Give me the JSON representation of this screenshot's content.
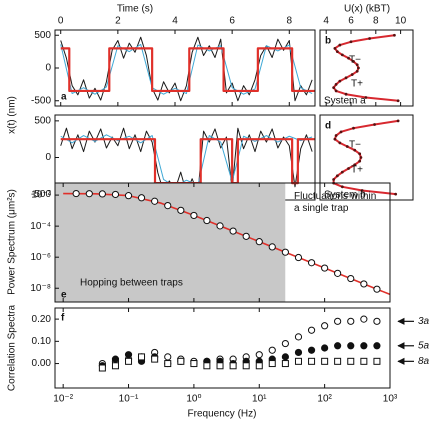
{
  "chart_data": [
    {
      "type": "line",
      "panel_label": "a",
      "x_label": "Time (s)",
      "y_label": "x(t) (nm)",
      "xlim": [
        -0.2,
        8.9
      ],
      "xticks": [
        0,
        2,
        4,
        6,
        8
      ],
      "ylim": [
        -580,
        580
      ],
      "yticks": [
        -500,
        0,
        500
      ],
      "series": [
        {
          "color": "#1a1a1a",
          "x": [
            0,
            0.2,
            0.4,
            0.6,
            0.8,
            1,
            1.2,
            1.4,
            1.6,
            1.8,
            2,
            2.2,
            2.4,
            2.6,
            2.8,
            3,
            3.2,
            3.4,
            3.6,
            3.8,
            4,
            4.2,
            4.4,
            4.6,
            4.8,
            5,
            5.2,
            5.4,
            5.6,
            5.8,
            6,
            6.2,
            6.4,
            6.6,
            6.8,
            7,
            7.2,
            7.4,
            7.6,
            7.8,
            8,
            8.2,
            8.4,
            8.6,
            8.8
          ],
          "values": [
            420,
            150,
            -270,
            -410,
            -180,
            -460,
            -310,
            -490,
            -210,
            270,
            420,
            150,
            380,
            240,
            470,
            190,
            -310,
            -490,
            -210,
            -380,
            -230,
            -500,
            -270,
            240,
            470,
            190,
            340,
            160,
            440,
            -380,
            -230,
            -500,
            -270,
            -410,
            -180,
            190,
            340,
            160,
            440,
            270,
            420,
            -500,
            -270,
            -410,
            -180
          ]
        },
        {
          "color": "#3fa9d6",
          "x": [
            0,
            0.4,
            0.8,
            1.2,
            1.6,
            2,
            2.4,
            2.8,
            3.2,
            3.6,
            4,
            4.4,
            4.8,
            5.2,
            5.6,
            6,
            6.4,
            6.8,
            7.2,
            7.6,
            8,
            8.4,
            8.8
          ],
          "values": [
            360,
            -390,
            -300,
            -400,
            -290,
            340,
            250,
            360,
            -300,
            -400,
            -310,
            -390,
            350,
            260,
            340,
            -300,
            -400,
            -320,
            340,
            260,
            350,
            -300,
            -390
          ]
        },
        {
          "color": "#e0302a",
          "x": [
            0,
            0.3,
            0.3,
            1.7,
            1.7,
            3.2,
            3.2,
            4.5,
            4.5,
            5.7,
            5.7,
            6.9,
            6.9,
            8.1,
            8.1,
            8.9
          ],
          "values": [
            300,
            300,
            -350,
            -350,
            300,
            300,
            -350,
            -350,
            300,
            300,
            -350,
            -350,
            300,
            300,
            -350,
            -350
          ]
        }
      ]
    },
    {
      "type": "profile",
      "panel_label": "b",
      "x_label": "U(x) (kBT)",
      "xlim": [
        3.5,
        11
      ],
      "xticks": [
        4,
        6,
        8,
        10
      ],
      "ylim": [
        -580,
        580
      ],
      "annotations": [
        "T−",
        "T+",
        "System a"
      ],
      "series": [
        {
          "color": "#d7282f",
          "x": [
            500,
            450,
            400,
            350,
            300,
            250,
            200,
            150,
            100,
            50,
            0,
            -50,
            -100,
            -150,
            -200,
            -250,
            -300,
            -350,
            -400,
            -450,
            -500
          ],
          "values": [
            9.5,
            7.5,
            6.0,
            5.1,
            4.7,
            4.9,
            5.3,
            5.8,
            6.2,
            6.5,
            6.6,
            6.5,
            6.1,
            5.6,
            5.1,
            4.8,
            4.6,
            4.8,
            5.6,
            7.2,
            9.8
          ]
        }
      ]
    },
    {
      "type": "line",
      "panel_label": "c",
      "xlim": [
        -0.2,
        8.9
      ],
      "ylim": [
        -580,
        580
      ],
      "yticks": [
        -500,
        0,
        500
      ],
      "series": [
        {
          "color": "#1a1a1a",
          "x": [
            0,
            0.2,
            0.4,
            0.6,
            0.8,
            1,
            1.2,
            1.4,
            1.6,
            1.8,
            2,
            2.2,
            2.4,
            2.6,
            2.8,
            3,
            3.2,
            3.4,
            3.6,
            3.8,
            4,
            4.2,
            4.4,
            4.6,
            4.8,
            5,
            5.2,
            5.4,
            5.6,
            5.8,
            6,
            6.2,
            6.4,
            6.6,
            6.8,
            7,
            7.2,
            7.4,
            7.6,
            7.8,
            8,
            8.2,
            8.4,
            8.6,
            8.8
          ],
          "values": [
            160,
            400,
            120,
            310,
            80,
            360,
            210,
            390,
            130,
            280,
            160,
            400,
            120,
            310,
            80,
            360,
            210,
            -210,
            -470,
            -320,
            -440,
            -200,
            -480,
            -290,
            -490,
            360,
            210,
            390,
            130,
            280,
            -440,
            400,
            120,
            310,
            80,
            360,
            210,
            390,
            130,
            280,
            160,
            -400,
            120,
            310,
            80
          ]
        },
        {
          "color": "#3fa9d6",
          "x": [
            0,
            0.4,
            0.8,
            1.2,
            1.6,
            2,
            2.4,
            2.8,
            3.2,
            3.6,
            4,
            4.4,
            4.8,
            5.2,
            5.6,
            6,
            6.4,
            6.8,
            7.2,
            7.6,
            8,
            8.4,
            8.8
          ],
          "values": [
            290,
            200,
            300,
            220,
            310,
            230,
            290,
            200,
            300,
            -300,
            -400,
            -310,
            -380,
            300,
            210,
            -330,
            290,
            220,
            300,
            210,
            290,
            230,
            280
          ]
        },
        {
          "color": "#e0302a",
          "x": [
            0,
            3.3,
            3.3,
            4.9,
            4.9,
            6.0,
            6.0,
            6.2,
            6.2,
            8.1,
            8.1,
            8.3,
            8.3,
            8.9
          ],
          "values": [
            250,
            250,
            -350,
            -350,
            250,
            250,
            -350,
            -350,
            250,
            250,
            -350,
            -350,
            250,
            250
          ]
        }
      ]
    },
    {
      "type": "profile",
      "panel_label": "d",
      "xlim": [
        3.5,
        11
      ],
      "ylim": [
        -580,
        580
      ],
      "annotations": [
        "T−",
        "T+",
        "System b"
      ],
      "series": [
        {
          "color": "#d7282f",
          "x": [
            500,
            450,
            400,
            350,
            300,
            250,
            200,
            150,
            100,
            50,
            0,
            -50,
            -100,
            -150,
            -200,
            -250,
            -300,
            -350,
            -400,
            -450,
            -500
          ],
          "values": [
            9.8,
            7.9,
            6.2,
            5.2,
            4.8,
            4.7,
            5.1,
            5.7,
            6.3,
            6.7,
            6.8,
            6.7,
            6.3,
            5.8,
            5.3,
            4.9,
            4.6,
            4.6,
            5.3,
            6.9,
            9.6
          ]
        }
      ]
    },
    {
      "type": "spectrum",
      "panel_label": "e",
      "y_label": "Power Spectrum (μm²s)",
      "xscale": "log",
      "yscale": "log",
      "xlim": [
        0.0075,
        1000
      ],
      "ylim": [
        1.3e-09,
        0.06
      ],
      "yticks": [
        {
          "value": 0.01,
          "label": "10⁻²"
        },
        {
          "value": 0.0001,
          "label": "10⁻⁴"
        },
        {
          "value": 1e-06,
          "label": "10⁻⁶"
        },
        {
          "value": 1e-08,
          "label": "10⁻⁸"
        }
      ],
      "shaded_xlim": [
        0.0075,
        25
      ],
      "shade_color": "#c8c8c8",
      "annotations": [
        "Fluctuations within a single trap",
        "Hopping between traps"
      ],
      "series": [
        {
          "color": "#e0302a",
          "marker": "line",
          "x": [
            0.01,
            0.0316,
            0.1,
            0.316,
            1,
            3.16,
            10,
            31.6,
            100,
            316,
            1000
          ],
          "values": [
            0.0125,
            0.0121,
            0.0092,
            0.003,
            0.00049,
            7e-05,
            1e-05,
            1.4e-06,
            2e-07,
            2.8e-08,
            4e-09
          ]
        },
        {
          "color": "#111111",
          "marker": "open-circle",
          "x": [
            0.0158,
            0.0251,
            0.0398,
            0.0631,
            0.1,
            0.158,
            0.251,
            0.398,
            0.631,
            1,
            1.58,
            2.51,
            3.98,
            6.31,
            10,
            15.8,
            25.1,
            39.8,
            63.1,
            100,
            158,
            251,
            398,
            631
          ],
          "values": [
            0.0125,
            0.0123,
            0.0119,
            0.011,
            0.0092,
            0.0067,
            0.004,
            0.0021,
            0.00104,
            0.00049,
            0.00023,
            0.000104,
            4.8e-05,
            2.2e-05,
            1e-05,
            4.6e-06,
            2.1e-06,
            9.5e-07,
            4.4e-07,
            2e-07,
            9.1e-08,
            4.2e-08,
            1.9e-08,
            8.7e-09
          ]
        }
      ]
    },
    {
      "type": "scatter",
      "panel_label": "f",
      "x_label": "Frequency (Hz)",
      "y_label": "Correlation Spectra",
      "xscale": "log",
      "xlim": [
        0.0075,
        1000
      ],
      "ylim": [
        -0.11,
        0.25
      ],
      "xticks": [
        {
          "value": 0.01,
          "label": "10⁻²"
        },
        {
          "value": 0.1,
          "label": "10⁻¹"
        },
        {
          "value": 1,
          "label": "10⁰"
        },
        {
          "value": 10,
          "label": "10¹"
        },
        {
          "value": 100,
          "label": "10²"
        },
        {
          "value": 1000,
          "label": "10³"
        }
      ],
      "yticks": [
        {
          "value": 0,
          "label": "0.00"
        },
        {
          "value": 0.1,
          "label": "0.10"
        },
        {
          "value": 0.2,
          "label": "0.20"
        }
      ],
      "legend": "right",
      "x": [
        0.0398,
        0.0631,
        0.1,
        0.158,
        0.251,
        0.398,
        0.631,
        1,
        1.58,
        2.51,
        3.98,
        6.31,
        10,
        15.8,
        25.1,
        39.8,
        63.1,
        100,
        158,
        251,
        398,
        631
      ],
      "series": [
        {
          "name": "3a",
          "color": "#111111",
          "marker": "open-circle",
          "values": [
            0.0,
            0.01,
            0.02,
            0.03,
            0.05,
            0.03,
            0.02,
            0.01,
            0.01,
            0.02,
            0.02,
            0.03,
            0.04,
            0.06,
            0.09,
            0.12,
            0.15,
            0.17,
            0.19,
            0.19,
            0.2,
            0.19
          ]
        },
        {
          "name": "5a",
          "color": "#111111",
          "marker": "filled-circle",
          "values": [
            -0.01,
            0.02,
            0.04,
            0.01,
            0.03,
            0.0,
            0.01,
            0.0,
            0.01,
            0.01,
            0.0,
            0.01,
            0.01,
            0.02,
            0.03,
            0.05,
            0.06,
            0.07,
            0.08,
            0.08,
            0.08,
            0.08
          ]
        },
        {
          "name": "8a",
          "color": "#111111",
          "marker": "open-square",
          "values": [
            -0.02,
            -0.01,
            0.01,
            0.03,
            0.02,
            0.0,
            0.01,
            0.0,
            -0.01,
            -0.01,
            -0.01,
            -0.01,
            -0.01,
            0.0,
            0.0,
            0.01,
            0.01,
            0.01,
            0.01,
            0.01,
            0.01,
            0.01
          ]
        }
      ]
    }
  ]
}
